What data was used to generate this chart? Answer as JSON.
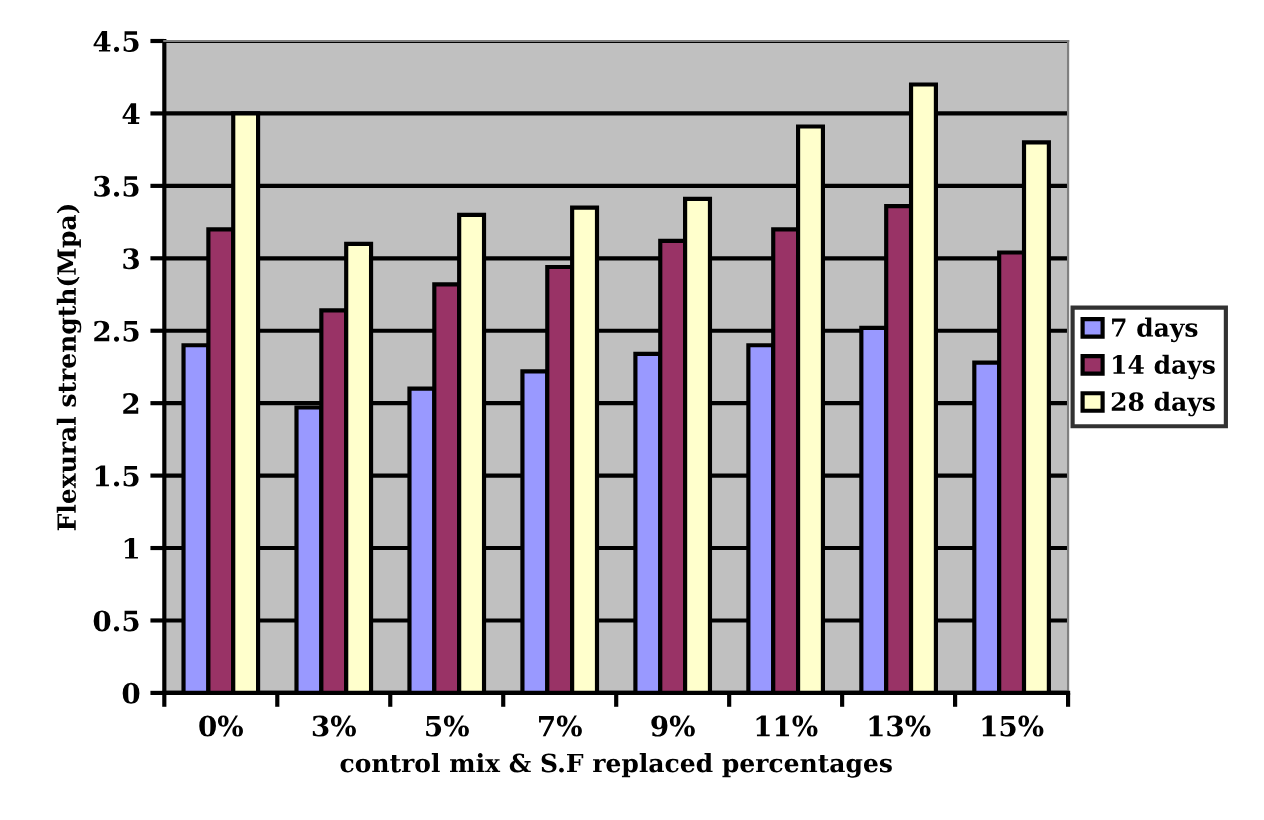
{
  "chart_data": {
    "type": "bar",
    "xlabel": "control mix & S.F replaced percentages",
    "ylabel": "Flexural strength(Mpa)",
    "categories": [
      "0%",
      "3%",
      "5%",
      "7%",
      "9%",
      "11%",
      "13%",
      "15%"
    ],
    "series": [
      {
        "name": "7 days",
        "color": "#9999ff",
        "values": [
          2.4,
          1.97,
          2.1,
          2.22,
          2.34,
          2.4,
          2.52,
          2.28
        ]
      },
      {
        "name": "14 days",
        "color": "#993366",
        "values": [
          3.2,
          2.64,
          2.82,
          2.94,
          3.12,
          3.2,
          3.36,
          3.04
        ]
      },
      {
        "name": "28 days",
        "color": "#ffffcc",
        "values": [
          4.0,
          3.1,
          3.3,
          3.35,
          3.41,
          3.91,
          4.2,
          3.8
        ]
      }
    ],
    "ylim": [
      0,
      4.5
    ],
    "yticks": [
      0,
      0.5,
      1,
      1.5,
      2,
      2.5,
      3,
      3.5,
      4,
      4.5
    ],
    "grid": "y",
    "legend": "right"
  }
}
